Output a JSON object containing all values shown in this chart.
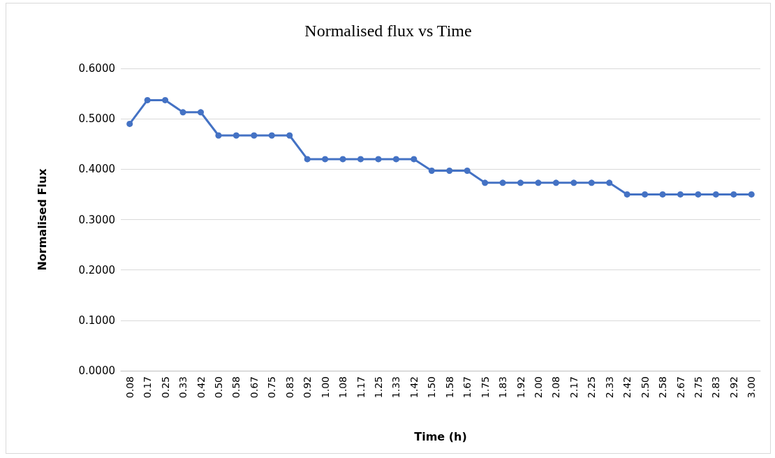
{
  "chart_data": {
    "type": "line",
    "title": "Normalised flux vs Time",
    "xlabel": "Time (h)",
    "ylabel": "Normalised Flux",
    "categories": [
      "0.08",
      "0.17",
      "0.25",
      "0.33",
      "0.42",
      "0.50",
      "0.58",
      "0.67",
      "0.75",
      "0.83",
      "0.92",
      "1.00",
      "1.08",
      "1.17",
      "1.25",
      "1.33",
      "1.42",
      "1.50",
      "1.58",
      "1.67",
      "1.75",
      "1.83",
      "1.92",
      "2.00",
      "2.08",
      "2.17",
      "2.25",
      "2.33",
      "2.42",
      "2.50",
      "2.58",
      "2.67",
      "2.75",
      "2.83",
      "2.92",
      "3.00"
    ],
    "series": [
      {
        "color": "#4472c4",
        "values": [
          0.49,
          0.537,
          0.537,
          0.513,
          0.513,
          0.467,
          0.467,
          0.467,
          0.467,
          0.467,
          0.42,
          0.42,
          0.42,
          0.42,
          0.42,
          0.42,
          0.42,
          0.397,
          0.397,
          0.397,
          0.373,
          0.373,
          0.373,
          0.373,
          0.373,
          0.373,
          0.373,
          0.373,
          0.35,
          0.35,
          0.35,
          0.35,
          0.35,
          0.35,
          0.35,
          0.35
        ]
      }
    ],
    "ylim": [
      0,
      0.6
    ],
    "yticks": [
      {
        "value": 0,
        "label": "0.0000"
      },
      {
        "value": 0.1,
        "label": "0.1000"
      },
      {
        "value": 0.2,
        "label": "0.2000"
      },
      {
        "value": 0.3,
        "label": "0.3000"
      },
      {
        "value": 0.4,
        "label": "0.4000"
      },
      {
        "value": 0.5,
        "label": "0.5000"
      },
      {
        "value": 0.6,
        "label": "0.6000"
      }
    ],
    "grid": "y",
    "marker": "circle",
    "line_style": "solid"
  }
}
